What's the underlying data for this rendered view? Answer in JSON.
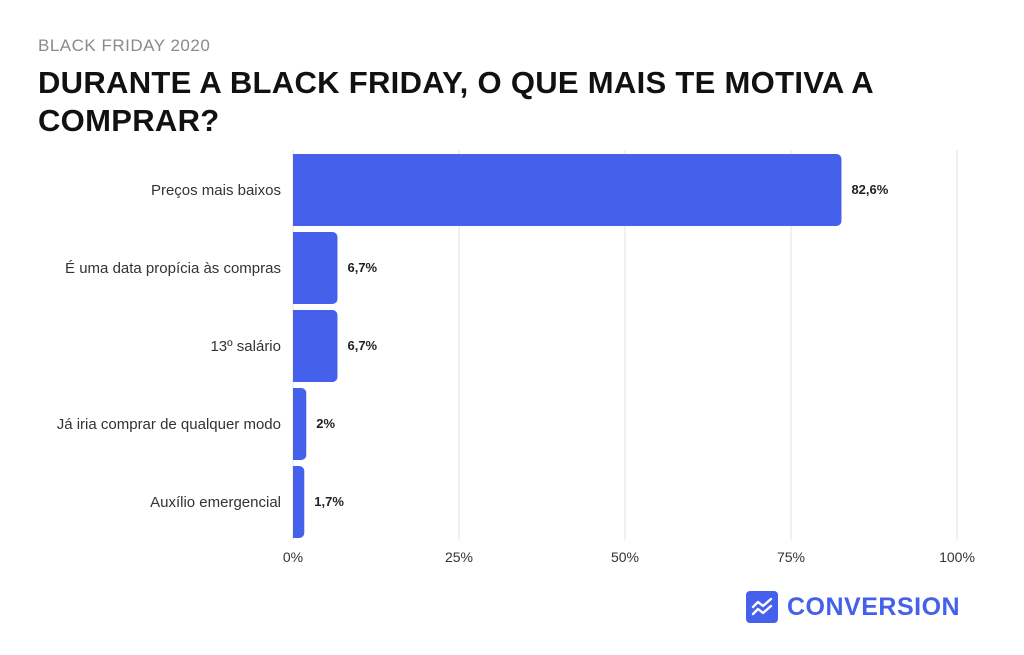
{
  "header": {
    "eyebrow": "BLACK FRIDAY 2020",
    "title": "DURANTE A BLACK FRIDAY, O QUE MAIS TE MOTIVA A COMPRAR?"
  },
  "brand": {
    "name": "CONVERSION",
    "color": "#4560ea",
    "icon": "chart-trend-icon"
  },
  "chart_data": {
    "type": "bar",
    "orientation": "horizontal",
    "categories": [
      "Preços mais baixos",
      "É uma data propícia às compras",
      "13º salário",
      "Já iria comprar de qualquer modo",
      "Auxílio emergencial"
    ],
    "values": [
      82.6,
      6.7,
      6.7,
      2,
      1.7
    ],
    "value_labels": [
      "82,6%",
      "6,7%",
      "6,7%",
      "2%",
      "1,7%"
    ],
    "xlim": [
      0,
      100
    ],
    "xticks": [
      0,
      25,
      50,
      75,
      100
    ],
    "xtick_labels": [
      "0%",
      "25%",
      "50%",
      "75%",
      "100%"
    ],
    "grid": true,
    "bar_color": "#4560ea",
    "grid_color": "#e3e3e3"
  }
}
